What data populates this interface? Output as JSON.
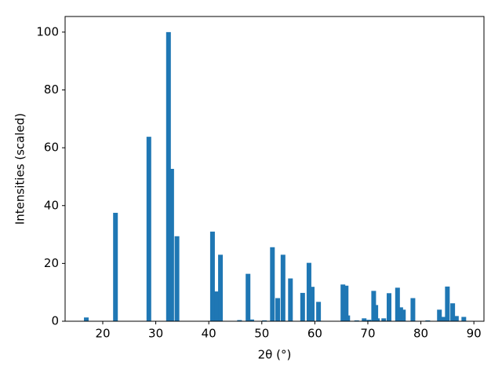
{
  "chart_data": {
    "type": "bar",
    "x_label": "2θ (°)",
    "y_label": "Intensities (scaled)",
    "color": "#1f77b4",
    "x": [
      16.9,
      22.4,
      28.7,
      32.4,
      33.0,
      34.0,
      40.7,
      41.5,
      42.2,
      45.8,
      47.4,
      48.1,
      50.5,
      52.0,
      53.0,
      54.0,
      55.4,
      57.7,
      58.9,
      59.5,
      60.7,
      65.3,
      65.9,
      66.2,
      67.9,
      69.3,
      70.2,
      71.1,
      71.5,
      71.8,
      73.0,
      74.0,
      75.6,
      76.2,
      76.7,
      78.5,
      81.3,
      83.5,
      84.2,
      85.0,
      86.0,
      86.7,
      88.1
    ],
    "values": [
      1.3,
      37.5,
      63.8,
      100,
      52.7,
      29.4,
      31,
      10.3,
      23,
      0.4,
      16.4,
      0.6,
      0.3,
      25.6,
      8,
      23,
      14.8,
      9.8,
      20.2,
      11.9,
      6.7,
      12.7,
      12.3,
      2,
      0.3,
      1,
      0.5,
      10.5,
      5.6,
      1,
      1,
      9.7,
      11.6,
      4.8,
      4,
      8,
      0.3,
      4,
      1.5,
      12,
      6.2,
      1.8,
      1.5
    ],
    "xlim": [
      12.9,
      91.9
    ],
    "ylim": [
      0,
      105.4
    ],
    "xticks": [
      20,
      30,
      40,
      50,
      60,
      70,
      80,
      90
    ],
    "yticks": [
      0,
      20,
      40,
      60,
      80,
      100
    ]
  }
}
